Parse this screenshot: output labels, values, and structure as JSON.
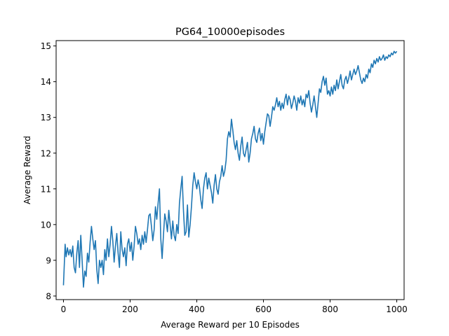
{
  "chart_data": {
    "type": "line",
    "title": "PG64_10000episodes",
    "xlabel": "Average Reward per 10 Episodes",
    "ylabel": "Average Reward",
    "xlim": [
      -22,
      1022
    ],
    "ylim": [
      7.9,
      15.15
    ],
    "xticks": [
      0,
      200,
      400,
      600,
      800,
      1000
    ],
    "yticks": [
      8,
      9,
      10,
      11,
      12,
      13,
      14,
      15
    ],
    "grid": false,
    "legend": "none",
    "series": [
      {
        "color": "#1f77b4",
        "points": [
          [
            0,
            8.3
          ],
          [
            5,
            9.45
          ],
          [
            8,
            9.1
          ],
          [
            12,
            9.35
          ],
          [
            16,
            9.15
          ],
          [
            20,
            9.3
          ],
          [
            24,
            9.1
          ],
          [
            28,
            9.4
          ],
          [
            32,
            8.8
          ],
          [
            36,
            8.65
          ],
          [
            40,
            9.2
          ],
          [
            44,
            9.55
          ],
          [
            48,
            8.8
          ],
          [
            52,
            9.7
          ],
          [
            56,
            9.0
          ],
          [
            60,
            8.25
          ],
          [
            64,
            8.7
          ],
          [
            68,
            8.55
          ],
          [
            72,
            9.2
          ],
          [
            76,
            8.95
          ],
          [
            80,
            9.5
          ],
          [
            84,
            9.95
          ],
          [
            88,
            9.6
          ],
          [
            92,
            9.3
          ],
          [
            96,
            9.55
          ],
          [
            100,
            8.75
          ],
          [
            104,
            8.35
          ],
          [
            108,
            9.0
          ],
          [
            112,
            8.8
          ],
          [
            116,
            9.0
          ],
          [
            120,
            8.6
          ],
          [
            124,
            9.3
          ],
          [
            128,
            9.0
          ],
          [
            132,
            9.6
          ],
          [
            136,
            9.1
          ],
          [
            140,
            9.45
          ],
          [
            144,
            9.95
          ],
          [
            148,
            9.55
          ],
          [
            152,
            8.95
          ],
          [
            156,
            9.4
          ],
          [
            160,
            9.75
          ],
          [
            164,
            9.2
          ],
          [
            168,
            8.8
          ],
          [
            172,
            9.8
          ],
          [
            176,
            9.3
          ],
          [
            180,
            9.1
          ],
          [
            184,
            9.35
          ],
          [
            188,
            8.85
          ],
          [
            192,
            9.45
          ],
          [
            196,
            9.6
          ],
          [
            200,
            9.25
          ],
          [
            204,
            9.5
          ],
          [
            208,
            9.0
          ],
          [
            212,
            9.4
          ],
          [
            216,
            9.95
          ],
          [
            220,
            9.75
          ],
          [
            224,
            9.45
          ],
          [
            228,
            9.6
          ],
          [
            232,
            9.3
          ],
          [
            236,
            9.7
          ],
          [
            240,
            9.45
          ],
          [
            244,
            9.8
          ],
          [
            248,
            9.5
          ],
          [
            252,
            9.85
          ],
          [
            256,
            10.25
          ],
          [
            260,
            10.3
          ],
          [
            264,
            9.95
          ],
          [
            268,
            9.55
          ],
          [
            272,
            9.85
          ],
          [
            276,
            10.5
          ],
          [
            280,
            10.15
          ],
          [
            284,
            10.6
          ],
          [
            288,
            11.0
          ],
          [
            292,
            9.6
          ],
          [
            296,
            9.05
          ],
          [
            300,
            9.7
          ],
          [
            304,
            10.3
          ],
          [
            308,
            10.1
          ],
          [
            312,
            9.8
          ],
          [
            316,
            10.4
          ],
          [
            320,
            10.0
          ],
          [
            324,
            9.6
          ],
          [
            328,
            10.1
          ],
          [
            332,
            9.7
          ],
          [
            336,
            9.55
          ],
          [
            340,
            10.0
          ],
          [
            344,
            9.75
          ],
          [
            348,
            10.6
          ],
          [
            352,
            11.0
          ],
          [
            356,
            11.35
          ],
          [
            360,
            10.4
          ],
          [
            364,
            9.7
          ],
          [
            368,
            9.8
          ],
          [
            372,
            10.55
          ],
          [
            376,
            9.65
          ],
          [
            380,
            10.0
          ],
          [
            384,
            10.5
          ],
          [
            388,
            11.1
          ],
          [
            392,
            11.45
          ],
          [
            396,
            11.2
          ],
          [
            400,
            11.0
          ],
          [
            404,
            11.25
          ],
          [
            408,
            11.05
          ],
          [
            412,
            10.7
          ],
          [
            416,
            10.45
          ],
          [
            420,
            11.0
          ],
          [
            424,
            11.3
          ],
          [
            428,
            11.45
          ],
          [
            432,
            11.0
          ],
          [
            436,
            11.3
          ],
          [
            440,
            11.1
          ],
          [
            444,
            10.9
          ],
          [
            448,
            10.6
          ],
          [
            452,
            11.1
          ],
          [
            456,
            11.4
          ],
          [
            460,
            11.0
          ],
          [
            464,
            10.85
          ],
          [
            468,
            11.2
          ],
          [
            472,
            11.35
          ],
          [
            476,
            11.65
          ],
          [
            480,
            11.35
          ],
          [
            484,
            11.5
          ],
          [
            488,
            11.8
          ],
          [
            492,
            12.4
          ],
          [
            496,
            12.6
          ],
          [
            500,
            12.45
          ],
          [
            504,
            12.95
          ],
          [
            508,
            12.65
          ],
          [
            512,
            12.3
          ],
          [
            516,
            12.1
          ],
          [
            520,
            12.35
          ],
          [
            524,
            12.0
          ],
          [
            528,
            11.8
          ],
          [
            532,
            12.2
          ],
          [
            536,
            12.45
          ],
          [
            540,
            12.0
          ],
          [
            544,
            11.9
          ],
          [
            548,
            12.1
          ],
          [
            552,
            12.3
          ],
          [
            556,
            11.75
          ],
          [
            560,
            12.0
          ],
          [
            564,
            12.4
          ],
          [
            568,
            12.55
          ],
          [
            572,
            12.75
          ],
          [
            576,
            12.4
          ],
          [
            580,
            12.3
          ],
          [
            584,
            12.55
          ],
          [
            588,
            12.7
          ],
          [
            592,
            12.35
          ],
          [
            596,
            12.55
          ],
          [
            600,
            12.25
          ],
          [
            604,
            12.6
          ],
          [
            608,
            12.85
          ],
          [
            612,
            13.1
          ],
          [
            616,
            13.05
          ],
          [
            620,
            12.75
          ],
          [
            624,
            13.0
          ],
          [
            628,
            13.3
          ],
          [
            632,
            13.2
          ],
          [
            636,
            13.35
          ],
          [
            640,
            13.55
          ],
          [
            644,
            13.3
          ],
          [
            648,
            13.45
          ],
          [
            652,
            13.2
          ],
          [
            656,
            13.4
          ],
          [
            660,
            13.25
          ],
          [
            664,
            13.5
          ],
          [
            668,
            13.65
          ],
          [
            672,
            13.35
          ],
          [
            676,
            13.6
          ],
          [
            680,
            13.5
          ],
          [
            684,
            13.25
          ],
          [
            688,
            13.4
          ],
          [
            692,
            13.6
          ],
          [
            696,
            13.45
          ],
          [
            700,
            13.2
          ],
          [
            704,
            13.55
          ],
          [
            708,
            13.4
          ],
          [
            712,
            13.6
          ],
          [
            716,
            13.35
          ],
          [
            720,
            13.5
          ],
          [
            724,
            13.3
          ],
          [
            728,
            13.65
          ],
          [
            732,
            13.55
          ],
          [
            736,
            13.75
          ],
          [
            740,
            13.4
          ],
          [
            744,
            13.15
          ],
          [
            748,
            13.35
          ],
          [
            752,
            13.6
          ],
          [
            756,
            13.3
          ],
          [
            760,
            13.0
          ],
          [
            764,
            13.4
          ],
          [
            768,
            13.8
          ],
          [
            772,
            13.7
          ],
          [
            776,
            14.0
          ],
          [
            780,
            14.15
          ],
          [
            784,
            13.9
          ],
          [
            788,
            14.1
          ],
          [
            792,
            13.65
          ],
          [
            796,
            13.75
          ],
          [
            800,
            13.6
          ],
          [
            804,
            13.85
          ],
          [
            808,
            13.65
          ],
          [
            812,
            13.9
          ],
          [
            816,
            13.75
          ],
          [
            820,
            14.05
          ],
          [
            824,
            13.8
          ],
          [
            828,
            14.0
          ],
          [
            832,
            14.2
          ],
          [
            836,
            13.9
          ],
          [
            840,
            13.8
          ],
          [
            844,
            14.05
          ],
          [
            848,
            14.15
          ],
          [
            852,
            13.95
          ],
          [
            856,
            14.1
          ],
          [
            860,
            14.3
          ],
          [
            864,
            14.05
          ],
          [
            868,
            14.2
          ],
          [
            872,
            14.35
          ],
          [
            876,
            14.2
          ],
          [
            880,
            14.3
          ],
          [
            884,
            14.45
          ],
          [
            888,
            14.25
          ],
          [
            892,
            14.05
          ],
          [
            896,
            13.95
          ],
          [
            900,
            14.1
          ],
          [
            904,
            14.0
          ],
          [
            908,
            14.2
          ],
          [
            912,
            14.1
          ],
          [
            916,
            14.35
          ],
          [
            920,
            14.25
          ],
          [
            924,
            14.5
          ],
          [
            928,
            14.4
          ],
          [
            932,
            14.6
          ],
          [
            936,
            14.5
          ],
          [
            940,
            14.65
          ],
          [
            944,
            14.55
          ],
          [
            948,
            14.7
          ],
          [
            952,
            14.6
          ],
          [
            956,
            14.65
          ],
          [
            960,
            14.75
          ],
          [
            964,
            14.6
          ],
          [
            968,
            14.7
          ],
          [
            972,
            14.65
          ],
          [
            976,
            14.75
          ],
          [
            980,
            14.7
          ],
          [
            984,
            14.8
          ],
          [
            988,
            14.75
          ],
          [
            992,
            14.85
          ],
          [
            996,
            14.8
          ],
          [
            1000,
            14.85
          ]
        ]
      }
    ]
  }
}
